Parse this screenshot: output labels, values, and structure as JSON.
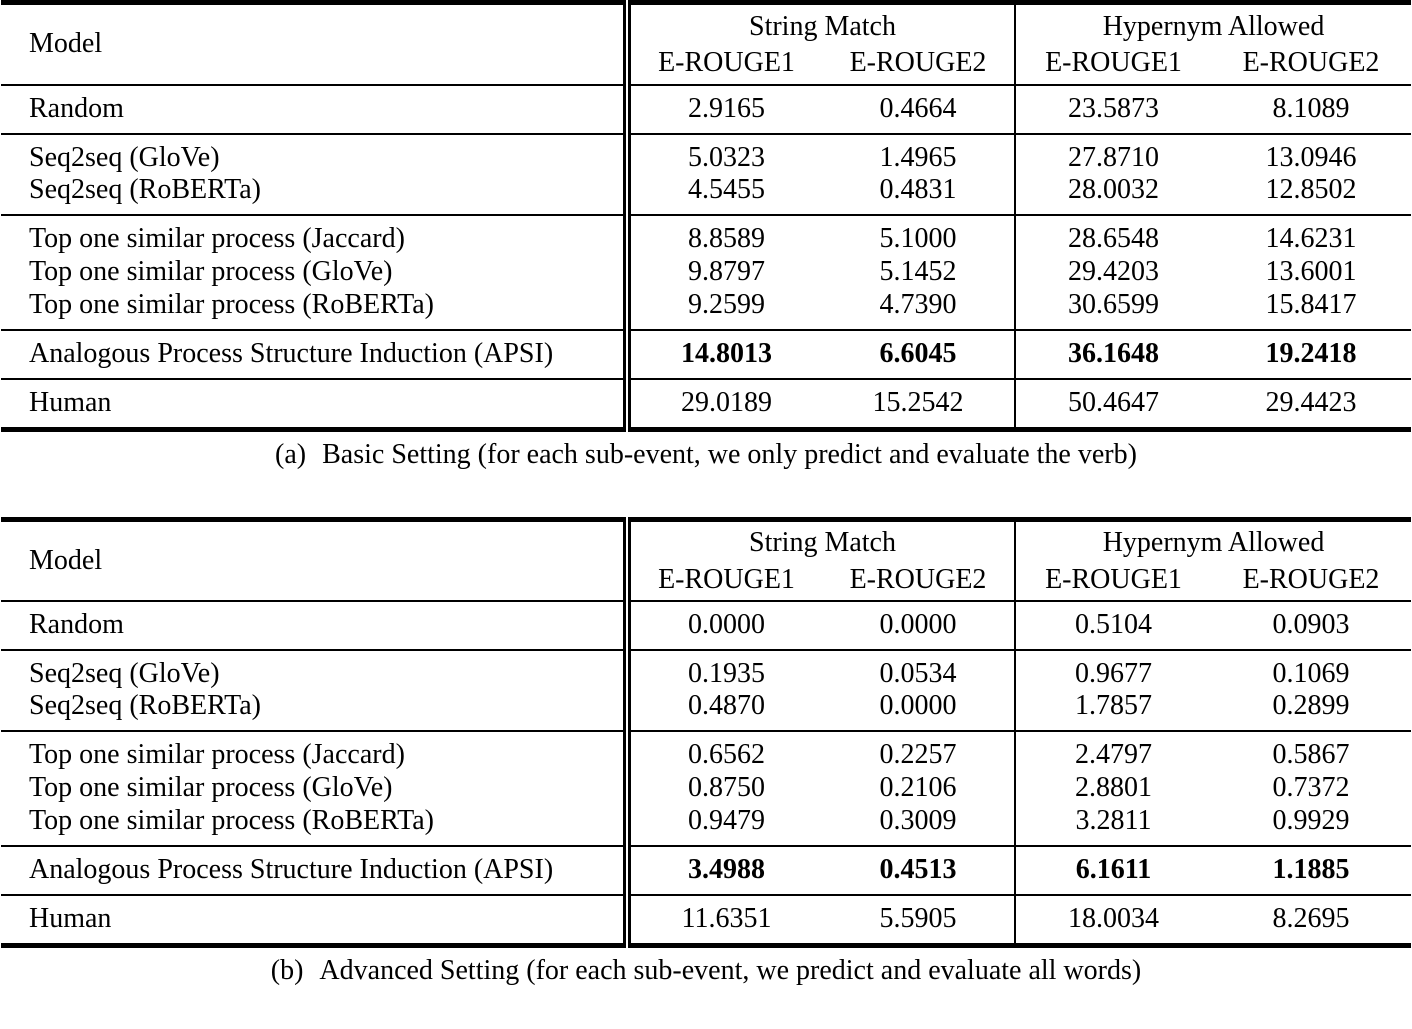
{
  "page": {
    "background": "#ffffff",
    "text_color": "#000000"
  },
  "tables": [
    {
      "header": {
        "model": "Model",
        "group1": "String Match",
        "group2": "Hypernym Allowed",
        "col1": "E-ROUGE1",
        "col2": "E-ROUGE2",
        "col3": "E-ROUGE1",
        "col4": "E-ROUGE2"
      },
      "groups": [
        {
          "rows": [
            {
              "model": "Random",
              "values": [
                "2.9165",
                "0.4664",
                "23.5873",
                "8.1089"
              ],
              "bold": false
            }
          ]
        },
        {
          "rows": [
            {
              "model": "Seq2seq (GloVe)",
              "values": [
                "5.0323",
                "1.4965",
                "27.8710",
                "13.0946"
              ],
              "bold": false
            },
            {
              "model": "Seq2seq (RoBERTa)",
              "values": [
                "4.5455",
                "0.4831",
                "28.0032",
                "12.8502"
              ],
              "bold": false
            }
          ]
        },
        {
          "rows": [
            {
              "model": "Top one similar process (Jaccard)",
              "values": [
                "8.8589",
                "5.1000",
                "28.6548",
                "14.6231"
              ],
              "bold": false
            },
            {
              "model": "Top one similar process (GloVe)",
              "values": [
                "9.8797",
                "5.1452",
                "29.4203",
                "13.6001"
              ],
              "bold": false
            },
            {
              "model": "Top one similar process (RoBERTa)",
              "values": [
                "9.2599",
                "4.7390",
                "30.6599",
                "15.8417"
              ],
              "bold": false
            }
          ]
        },
        {
          "rows": [
            {
              "model": "Analogous Process Structure Induction (APSI)",
              "values": [
                "14.8013",
                "6.6045",
                "36.1648",
                "19.2418"
              ],
              "bold": true
            }
          ]
        },
        {
          "rows": [
            {
              "model": "Human",
              "values": [
                "29.0189",
                "15.2542",
                "50.4647",
                "29.4423"
              ],
              "bold": false
            }
          ]
        }
      ],
      "caption_tag": "(a)",
      "caption_text": "Basic Setting (for each sub-event, we only predict and evaluate the verb)"
    },
    {
      "header": {
        "model": "Model",
        "group1": "String Match",
        "group2": "Hypernym Allowed",
        "col1": "E-ROUGE1",
        "col2": "E-ROUGE2",
        "col3": "E-ROUGE1",
        "col4": "E-ROUGE2"
      },
      "groups": [
        {
          "rows": [
            {
              "model": "Random",
              "values": [
                "0.0000",
                "0.0000",
                "0.5104",
                "0.0903"
              ],
              "bold": false
            }
          ]
        },
        {
          "rows": [
            {
              "model": "Seq2seq (GloVe)",
              "values": [
                "0.1935",
                "0.0534",
                "0.9677",
                "0.1069"
              ],
              "bold": false
            },
            {
              "model": "Seq2seq (RoBERTa)",
              "values": [
                "0.4870",
                "0.0000",
                "1.7857",
                "0.2899"
              ],
              "bold": false
            }
          ]
        },
        {
          "rows": [
            {
              "model": "Top one similar process (Jaccard)",
              "values": [
                "0.6562",
                "0.2257",
                "2.4797",
                "0.5867"
              ],
              "bold": false
            },
            {
              "model": "Top one similar process (GloVe)",
              "values": [
                "0.8750",
                "0.2106",
                "2.8801",
                "0.7372"
              ],
              "bold": false
            },
            {
              "model": "Top one similar process (RoBERTa)",
              "values": [
                "0.9479",
                "0.3009",
                "3.2811",
                "0.9929"
              ],
              "bold": false
            }
          ]
        },
        {
          "rows": [
            {
              "model": "Analogous Process Structure Induction (APSI)",
              "values": [
                "3.4988",
                "0.4513",
                "6.1611",
                "1.1885"
              ],
              "bold": true
            }
          ]
        },
        {
          "rows": [
            {
              "model": "Human",
              "values": [
                "11.6351",
                "5.5905",
                "18.0034",
                "8.2695"
              ],
              "bold": false
            }
          ]
        }
      ],
      "caption_tag": "(b)",
      "caption_text": "Advanced Setting (for each sub-event, we predict and evaluate all words)"
    }
  ]
}
